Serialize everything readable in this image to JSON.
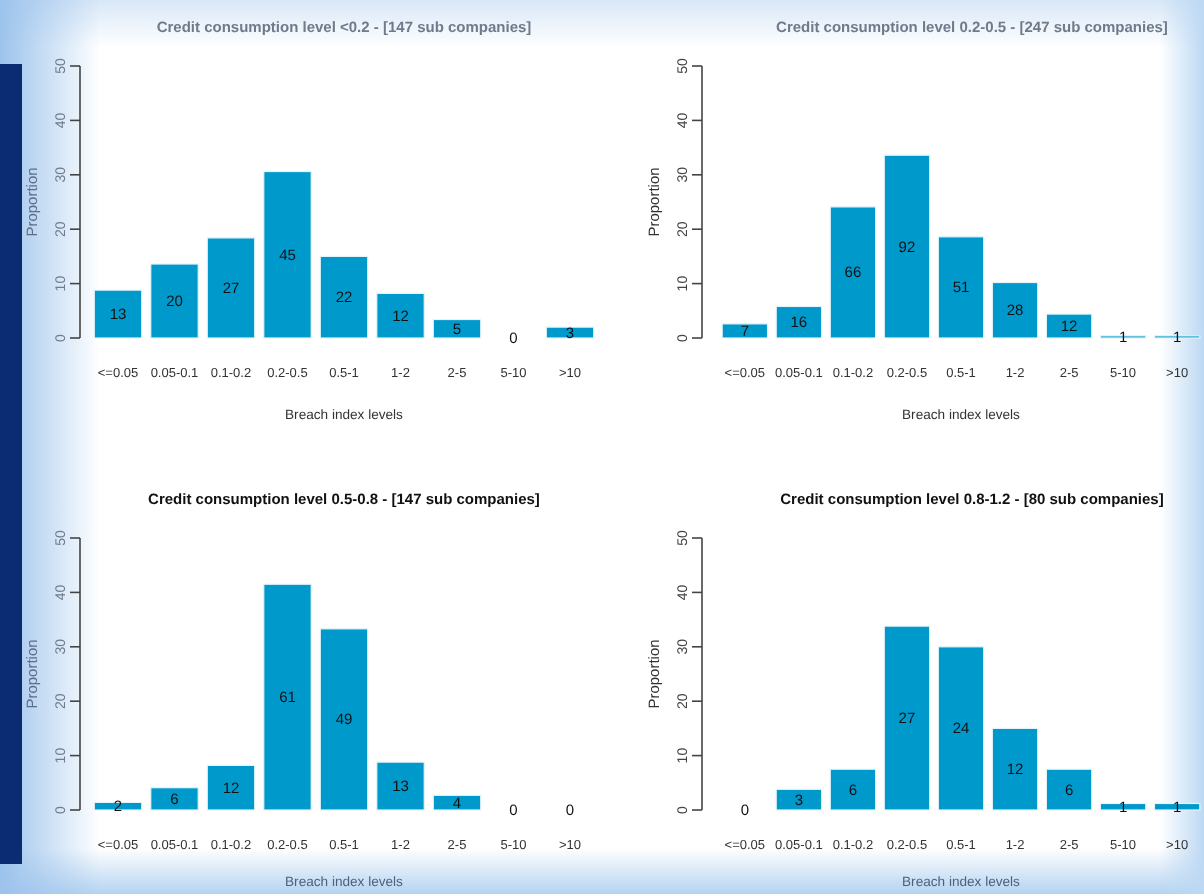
{
  "chart_data": [
    {
      "type": "bar",
      "title": "Credit consumption level <0.2 - [147 sub companies]",
      "xlabel": "Breach index levels",
      "ylabel": "Proportion",
      "categories": [
        "<=0.05",
        "0.05-0.1",
        "0.1-0.2",
        "0.2-0.5",
        "0.5-1",
        "1-2",
        "2-5",
        "5-10",
        ">10"
      ],
      "values": [
        8.8,
        13.6,
        18.4,
        30.6,
        15.0,
        8.2,
        3.4,
        0,
        2.0
      ],
      "color": "#0099cc",
      "ylim": [
        0,
        50
      ],
      "yticks": [
        0,
        10,
        20,
        30,
        40,
        50
      ],
      "annotations": [
        "13",
        "20",
        "27",
        "45",
        "22",
        "12",
        "5",
        "0",
        "3"
      ]
    },
    {
      "type": "bar",
      "title": "Credit consumption level 0.2-0.5 - [247 sub companies]",
      "xlabel": "Breach index levels",
      "ylabel": "Proportion",
      "categories": [
        "<=0.05",
        "0.05-0.1",
        "0.1-0.2",
        "0.2-0.5",
        "0.5-1",
        "1-2",
        "2-5",
        "5-10",
        ">10"
      ],
      "values": [
        2.6,
        5.8,
        24.1,
        33.6,
        18.6,
        10.2,
        4.4,
        0.4,
        0.4
      ],
      "color": "#0099cc",
      "ylim": [
        0,
        50
      ],
      "yticks": [
        0,
        10,
        20,
        30,
        40,
        50
      ],
      "annotations": [
        "7",
        "16",
        "66",
        "92",
        "51",
        "28",
        "12",
        "1",
        "1"
      ]
    },
    {
      "type": "bar",
      "title": "Credit consumption level 0.5-0.8 - [147 sub companies]",
      "xlabel": "Breach index levels",
      "ylabel": "Proportion",
      "categories": [
        "<=0.05",
        "0.05-0.1",
        "0.1-0.2",
        "0.2-0.5",
        "0.5-1",
        "1-2",
        "2-5",
        "5-10",
        ">10"
      ],
      "values": [
        1.4,
        4.1,
        8.2,
        41.5,
        33.3,
        8.8,
        2.7,
        0,
        0
      ],
      "color": "#0099cc",
      "ylim": [
        0,
        50
      ],
      "yticks": [
        0,
        10,
        20,
        30,
        40,
        50
      ],
      "annotations": [
        "2",
        "6",
        "12",
        "61",
        "49",
        "13",
        "4",
        "0",
        "0"
      ]
    },
    {
      "type": "bar",
      "title": "Credit consumption level 0.8-1.2 - [80 sub companies]",
      "xlabel": "Breach index levels",
      "ylabel": "Proportion",
      "categories": [
        "<=0.05",
        "0.05-0.1",
        "0.1-0.2",
        "0.2-0.5",
        "0.5-1",
        "1-2",
        "2-5",
        "5-10",
        ">10"
      ],
      "values": [
        0,
        3.8,
        7.5,
        33.8,
        30.0,
        15.0,
        7.5,
        1.2,
        1.2
      ],
      "color": "#0099cc",
      "ylim": [
        0,
        50
      ],
      "yticks": [
        0,
        10,
        20,
        30,
        40,
        50
      ],
      "annotations": [
        "0",
        "3",
        "6",
        "27",
        "24",
        "12",
        "6",
        "1",
        "1"
      ]
    }
  ]
}
